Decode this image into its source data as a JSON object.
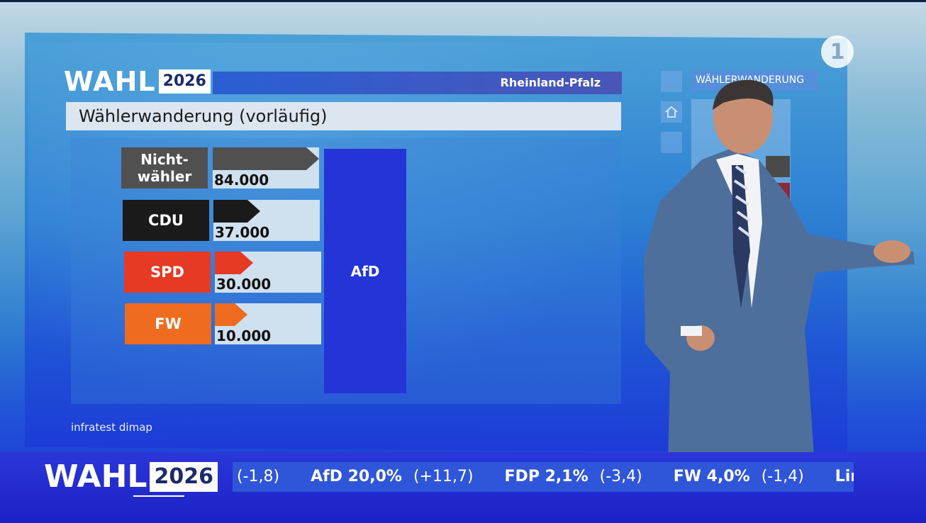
{
  "header": {
    "wahl": "WAHL",
    "year": "2026",
    "region": "Rheinland-Pfalz",
    "subtitle": "Wählerwanderung (vorläufig)"
  },
  "chart_data": {
    "type": "bar",
    "title": "Wählerwanderung (vorläufig)",
    "target": "AfD",
    "categories": [
      "Nicht-\nwähler",
      "CDU",
      "SPD",
      "FW"
    ],
    "values": [
      84000,
      37000,
      30000,
      10000
    ],
    "value_labels": [
      "84.000",
      "37.000",
      "30.000",
      "10.000"
    ],
    "colors": [
      "#505050",
      "#1a1a1a",
      "#e63a25",
      "#ee6b1f"
    ]
  },
  "source": "infratest dimap",
  "side_panel": {
    "title": "WÄHLERWANDERUNG"
  },
  "ticker": {
    "wahl": "WAHL",
    "year": "2026",
    "items": [
      {
        "party": "",
        "value": "",
        "change": "(-1,8)"
      },
      {
        "party": "AfD",
        "value": "20,0%",
        "change": "(+11,7)"
      },
      {
        "party": "FDP",
        "value": "2,1%",
        "change": "(-3,4)"
      },
      {
        "party": "FW",
        "value": "4,0%",
        "change": "(-1,4)"
      },
      {
        "party": "Linke",
        "value": "",
        "change": ""
      }
    ]
  }
}
